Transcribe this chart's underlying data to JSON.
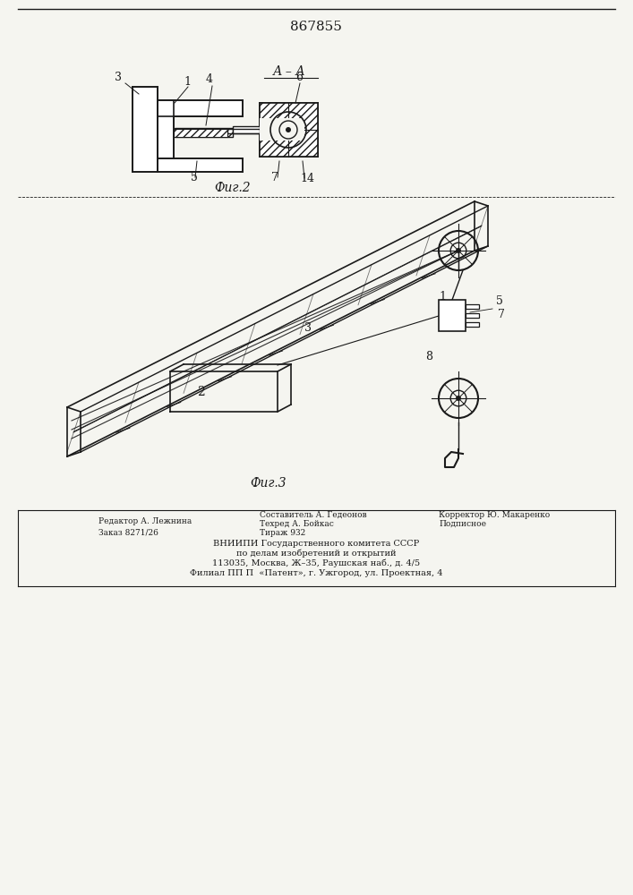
{
  "title": "867855",
  "fig2_label": "А – А",
  "fig2_caption": "Фиг.2",
  "fig3_caption": "Фиг.3",
  "footer_lines": [
    [
      "Редактор А. Лежнина",
      "Составитель А. Гедеонов",
      "Корректор Ю. Макаренко"
    ],
    [
      "Заказ 8271/26",
      "Техред А. Бойкас",
      "Подписное"
    ],
    [
      "",
      "Тираж 932",
      ""
    ],
    [
      "ВНИИПИ Государственного комитета СССР"
    ],
    [
      "по делам изобретений и открытий"
    ],
    [
      "113035, Москва, Ж–35, Раушская наб., д. 4/5"
    ],
    [
      "Филиал ПП П  «Патент», г. Ужгород, ул. Проектная, 4"
    ]
  ],
  "bg_color": "#f5f5f0",
  "line_color": "#1a1a1a",
  "hatch_color": "#1a1a1a"
}
